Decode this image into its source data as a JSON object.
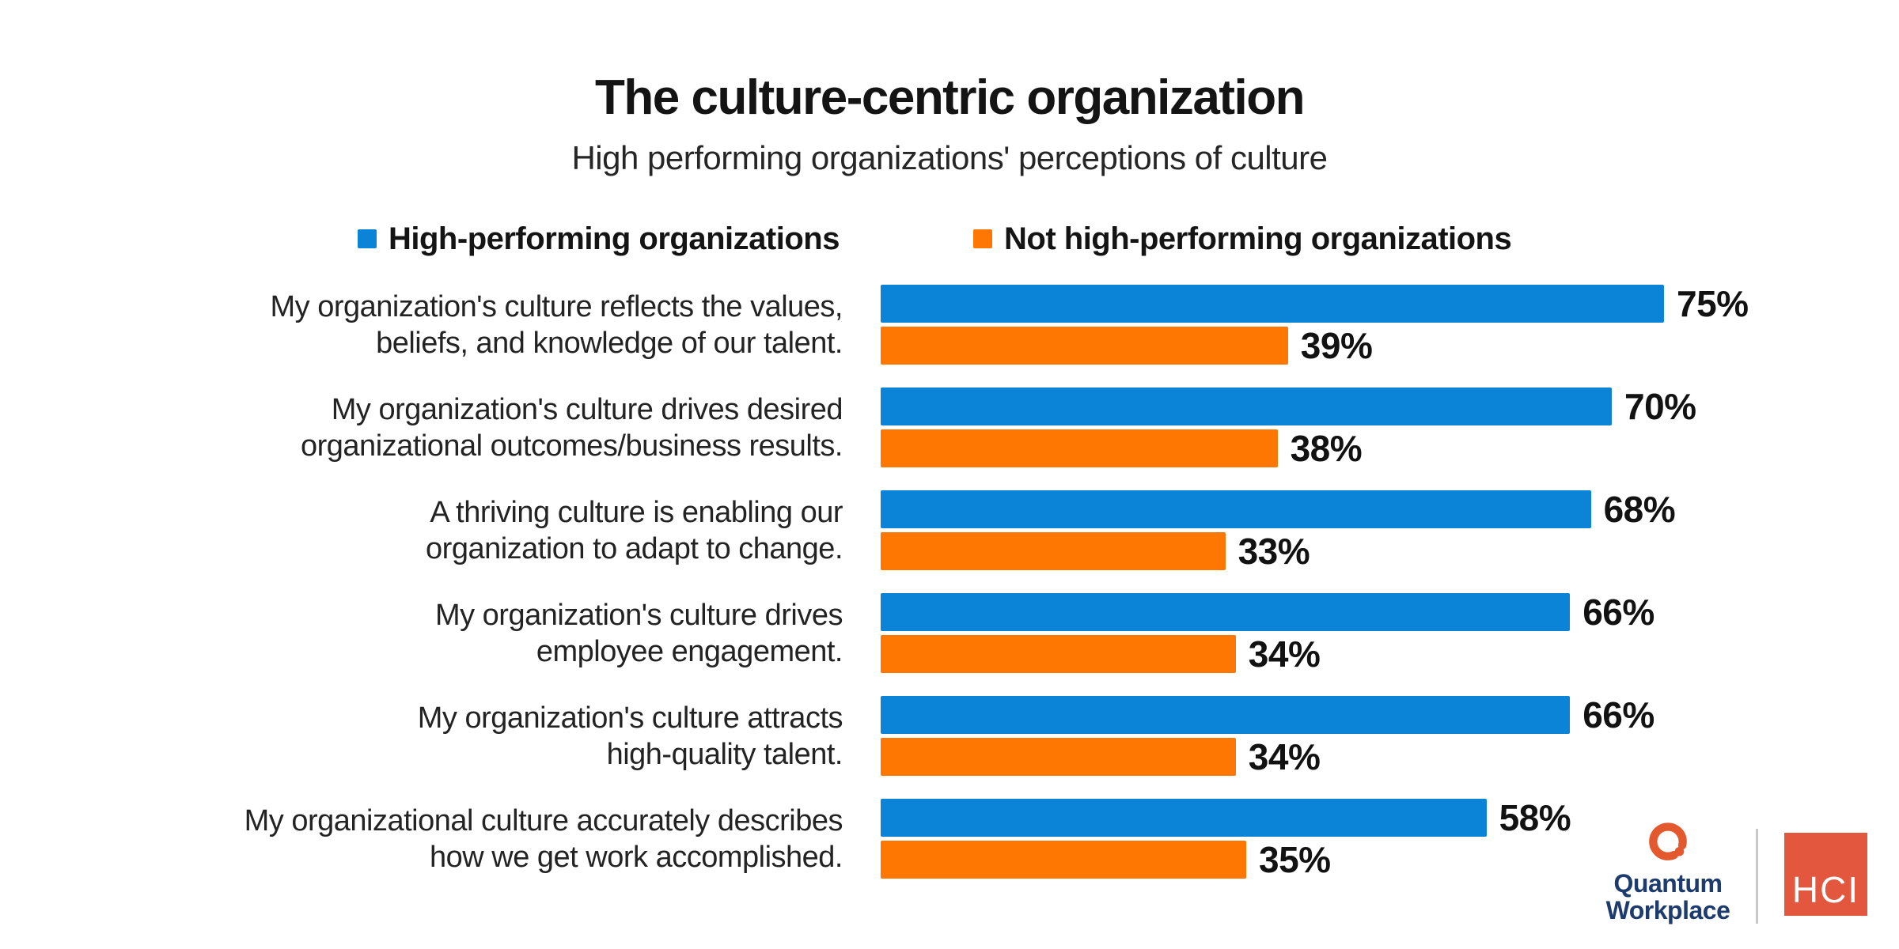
{
  "title": "The culture-centric organization",
  "subtitle": "High performing organizations' perceptions of culture",
  "colors": {
    "high_performing_blue": "#0b84d8",
    "not_high_performing_orange": "#fd7702",
    "text_dark": "#141414",
    "quantum_navy": "#1d3b6d",
    "quantum_mark_orange": "#e4582e",
    "hci_square_red_orange": "#e2573d",
    "divider_gray": "#c9c9c9",
    "background": "#ffffff"
  },
  "chart_data": {
    "type": "bar",
    "orientation": "horizontal",
    "title": "The culture-centric organization",
    "subtitle": "High performing organizations' perceptions of culture",
    "categories": [
      "My organization's culture reflects the values, beliefs, and knowledge of our talent.",
      "My organization's culture drives desired organizational outcomes/business results.",
      "A thriving culture is enabling our organization to adapt to change.",
      "My organization's culture drives employee engagement.",
      "My organization's culture attracts high-quality talent.",
      "My organizational culture accurately describes how we get work accomplished."
    ],
    "categories_wrapped": [
      [
        "My organization's culture reflects the values,",
        "beliefs, and knowledge of our talent."
      ],
      [
        "My organization's culture drives desired",
        "organizational outcomes/business results."
      ],
      [
        "A thriving culture is enabling our",
        "organization to adapt to change."
      ],
      [
        "My organization's culture drives",
        "employee engagement."
      ],
      [
        "My organization's culture attracts",
        "high-quality talent."
      ],
      [
        "My organizational culture accurately describes",
        "how we get work accomplished."
      ]
    ],
    "series": [
      {
        "name": "High-performing organizations",
        "color": "#0b84d8",
        "values": [
          75,
          70,
          68,
          66,
          66,
          58
        ]
      },
      {
        "name": "Not high-performing organizations",
        "color": "#fd7702",
        "values": [
          39,
          38,
          33,
          34,
          34,
          35
        ]
      }
    ],
    "value_suffix": "%",
    "value_labels_shown": true,
    "xlim": [
      0,
      100
    ],
    "gridlines": false,
    "legend_position": "top"
  },
  "footer": {
    "quantum_workplace": {
      "line1": "Quantum",
      "line2": "Workplace"
    },
    "hci_label": "HCI"
  }
}
